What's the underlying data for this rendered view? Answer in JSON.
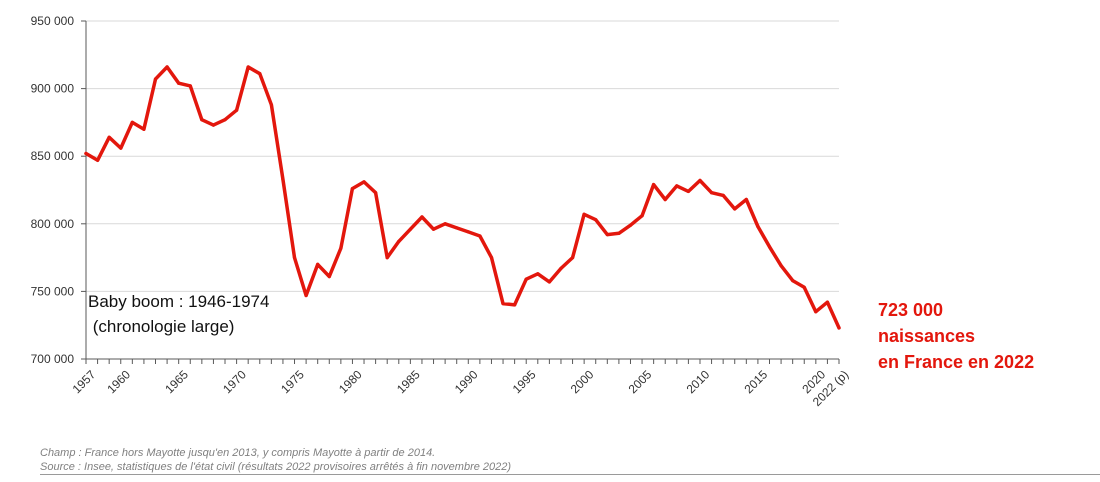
{
  "chart_data": {
    "type": "line",
    "x": [
      "1957",
      "1958",
      "1959",
      "1960",
      "1961",
      "1962",
      "1963",
      "1964",
      "1965",
      "1966",
      "1967",
      "1968",
      "1969",
      "1970",
      "1971",
      "1972",
      "1973",
      "1974",
      "1975",
      "1976",
      "1977",
      "1978",
      "1979",
      "1980",
      "1981",
      "1982",
      "1983",
      "1984",
      "1985",
      "1986",
      "1987",
      "1988",
      "1989",
      "1990",
      "1991",
      "1992",
      "1993",
      "1994",
      "1995",
      "1996",
      "1997",
      "1998",
      "1999",
      "2000",
      "2001",
      "2002",
      "2003",
      "2004",
      "2005",
      "2006",
      "2007",
      "2008",
      "2009",
      "2010",
      "2011",
      "2012",
      "2013",
      "2014",
      "2015",
      "2016",
      "2017",
      "2018",
      "2019",
      "2020",
      "2021",
      "2022"
    ],
    "values": [
      852000,
      847000,
      864000,
      856000,
      875000,
      870000,
      907000,
      916000,
      904000,
      902000,
      877000,
      873000,
      877000,
      884000,
      916000,
      911000,
      888000,
      833000,
      775000,
      747000,
      770000,
      761000,
      782000,
      826000,
      831000,
      823000,
      775000,
      787000,
      796000,
      805000,
      796000,
      800000,
      797000,
      794000,
      791000,
      775000,
      741000,
      740000,
      759000,
      763000,
      757000,
      767000,
      775000,
      807000,
      803000,
      792000,
      793000,
      799000,
      806000,
      829000,
      818000,
      828000,
      824000,
      832000,
      823000,
      821000,
      811000,
      818000,
      798000,
      783000,
      769000,
      758000,
      753000,
      735000,
      742000,
      723000
    ],
    "ylim": [
      700000,
      950000
    ],
    "y_ticks": [
      "700 000",
      "750 000",
      "800 000",
      "850 000",
      "900 000",
      "950 000"
    ],
    "x_ticks": [
      "1957",
      "1960",
      "1965",
      "1970",
      "1975",
      "1980",
      "1985",
      "1990",
      "1995",
      "2000",
      "2005",
      "2010",
      "2015",
      "2020",
      "2022 (p)"
    ],
    "x_tick_years": [
      "1957",
      "1960",
      "1965",
      "1970",
      "1975",
      "1980",
      "1985",
      "1990",
      "1995",
      "2000",
      "2005",
      "2010",
      "2015",
      "2020",
      "2022"
    ],
    "grid": "horizontal",
    "line_color": "#e3170d"
  },
  "annotation": {
    "line1": "Baby boom : 1946-1974",
    "line2": " (chronologie large)"
  },
  "callout": {
    "line1": "723 000",
    "line2": "naissances",
    "line3": "en France en 2022",
    "color": "#e3170d"
  },
  "notes": {
    "champ": "Champ : France hors Mayotte jusqu'en 2013, y compris Mayotte à partir de 2014.",
    "source": "Source : Insee, statistiques de l'état civil (résultats 2022 provisoires arrêtés à fin novembre 2022)"
  }
}
